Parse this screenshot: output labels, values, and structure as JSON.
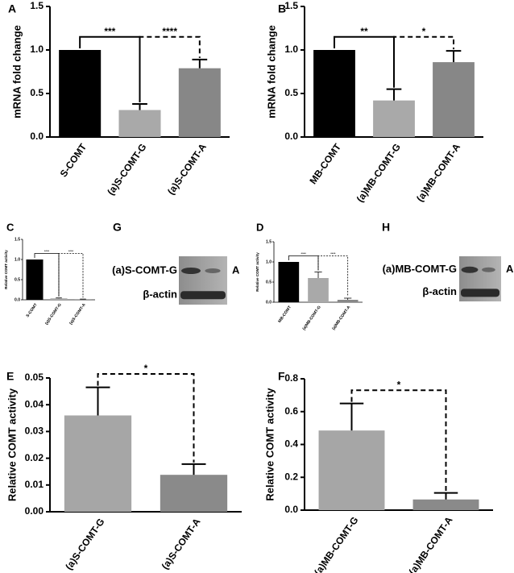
{
  "chart_data": [
    {
      "type": "bar",
      "panel": "A",
      "y_label": "mRNA fold change",
      "categories": [
        "S-COMT",
        "(a)S-COMT-G",
        "(a)S-COMT-A"
      ],
      "values": [
        1.0,
        0.31,
        0.79
      ],
      "errors": [
        0,
        0.07,
        0.1
      ],
      "colors": [
        "#000000",
        "#a9a9a9",
        "#878787"
      ],
      "ylim": [
        0,
        1.5
      ],
      "yticks": [
        {
          "value": 0,
          "label": "0.0"
        },
        0.5,
        {
          "value": 1,
          "label": "1.0"
        },
        1.5
      ],
      "annotations": [
        {
          "text": "***",
          "from": 0,
          "to": 1,
          "dashed": false
        },
        {
          "text": "****",
          "from": 1,
          "to": 2,
          "dashed": true
        }
      ]
    },
    {
      "type": "bar",
      "panel": "B",
      "y_label": "mRNA fold change",
      "categories": [
        "MB-COMT",
        "(a)MB-COMT-G",
        "(a)MB-COMT-A"
      ],
      "values": [
        1.0,
        0.42,
        0.86
      ],
      "errors": [
        0,
        0.13,
        0.13
      ],
      "colors": [
        "#000000",
        "#a9a9a9",
        "#878787"
      ],
      "ylim": [
        0,
        1.5
      ],
      "yticks": [
        {
          "value": 0,
          "label": "0.0"
        },
        0.5,
        {
          "value": 1,
          "label": "1.0"
        },
        1.5
      ],
      "annotations": [
        {
          "text": "**",
          "from": 0,
          "to": 1,
          "dashed": false
        },
        {
          "text": "*",
          "from": 1,
          "to": 2,
          "dashed": true
        }
      ]
    },
    {
      "type": "bar",
      "panel": "C",
      "y_label": "Relative COMT activity",
      "categories": [
        "S-COMT",
        "(a)S-COMT-G",
        "(a)S-COMT-A"
      ],
      "values": [
        1.0,
        0.036,
        0.014
      ],
      "errors": [
        0,
        0.01,
        0.004
      ],
      "colors": [
        "#000000",
        "#a9a9a9",
        "#878787"
      ],
      "ylim": [
        0,
        1.5
      ],
      "yticks": [
        {
          "value": 0,
          "label": "0.0"
        },
        0.5,
        {
          "value": 1,
          "label": "1.0"
        },
        1.5
      ],
      "annotations": [
        {
          "text": "****",
          "from": 0,
          "to": 1,
          "dashed": false
        },
        {
          "text": "****",
          "from": 1,
          "to": 2,
          "dashed": true
        }
      ]
    },
    {
      "type": "bar",
      "panel": "D",
      "y_label": "Relative COMT activity",
      "categories": [
        "MB-COMT",
        "(a)MB-COMT-G",
        "(a)MB-COMT-A"
      ],
      "values": [
        1.0,
        0.6,
        0.06
      ],
      "errors": [
        0,
        0.15,
        0.04
      ],
      "colors": [
        "#000000",
        "#a9a9a9",
        "#878787"
      ],
      "ylim": [
        0,
        1.5
      ],
      "yticks": [
        {
          "value": 0,
          "label": "0.0"
        },
        0.5,
        {
          "value": 1,
          "label": "1.0"
        },
        1.5
      ],
      "annotations": [
        {
          "text": "****",
          "from": 0,
          "to": 1,
          "dashed": false
        },
        {
          "text": "****",
          "from": 1,
          "to": 2,
          "dashed": true
        }
      ]
    },
    {
      "type": "bar",
      "panel": "E",
      "y_label": "Relative COMT activity",
      "categories": [
        "(a)S-COMT-G",
        "(a)S-COMT-A"
      ],
      "values": [
        0.036,
        0.0138
      ],
      "errors": [
        0.0105,
        0.004
      ],
      "colors": [
        "#a6a6a6",
        "#8a8a8a"
      ],
      "ylim": [
        0,
        0.05
      ],
      "yticks": [
        {
          "value": 0,
          "label": "0.00"
        },
        {
          "value": 0.01,
          "label": "0.01"
        },
        {
          "value": 0.02,
          "label": "0.02"
        },
        {
          "value": 0.03,
          "label": "0.03"
        },
        {
          "value": 0.04,
          "label": "0.04"
        },
        {
          "value": 0.05,
          "label": "0.05"
        }
      ],
      "annotations": [
        {
          "text": "*",
          "from": 0,
          "to": 1,
          "dashed": true
        }
      ]
    },
    {
      "type": "bar",
      "panel": "F",
      "y_label": "Relative COMT activity",
      "categories": [
        "(a)MB-COMT-G",
        "(a)MB-COMT-A"
      ],
      "values": [
        0.485,
        0.065
      ],
      "errors": [
        0.165,
        0.04
      ],
      "colors": [
        "#a6a6a6",
        "#8a8a8a"
      ],
      "ylim": [
        0,
        0.8
      ],
      "yticks": [
        {
          "value": 0,
          "label": "0.0"
        },
        0.2,
        0.4,
        0.6,
        0.8
      ],
      "annotations": [
        {
          "text": "*",
          "from": 0,
          "to": 1,
          "dashed": true
        }
      ]
    }
  ],
  "blots": [
    {
      "panel": "G",
      "label": "(a)S-COMT-G",
      "lane_label": "A",
      "control": "β-actin"
    },
    {
      "panel": "H",
      "label": "(a)MB-COMT-G",
      "lane_label": "A",
      "control": "β-actin"
    }
  ]
}
